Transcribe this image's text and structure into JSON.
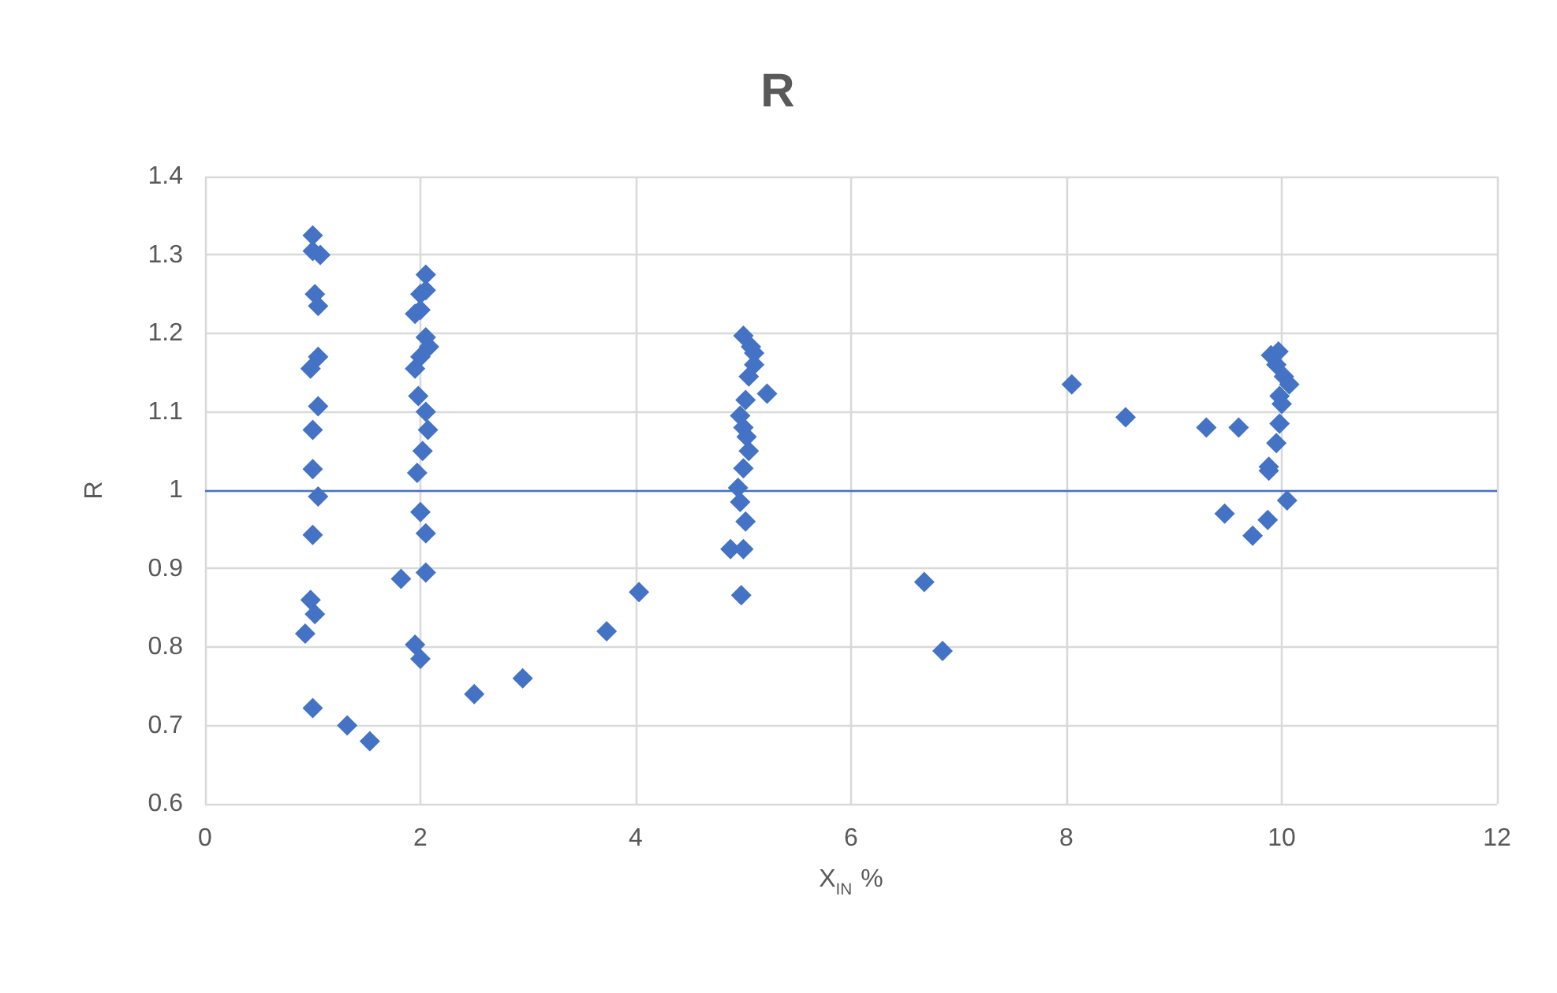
{
  "chart_data": {
    "type": "scatter",
    "title": "R",
    "xlabel": "X$_{IN}$ %",
    "ylabel": "R",
    "xlim": [
      0,
      12
    ],
    "xticks": [
      0,
      2,
      4,
      6,
      8,
      10,
      12
    ],
    "ylim": [
      0.6,
      1.4
    ],
    "yticks": [
      0.6,
      0.7,
      0.8,
      0.9,
      1,
      1.1,
      1.2,
      1.3,
      1.4
    ],
    "grid": true,
    "marker": "diamond",
    "series": [
      {
        "color": "#4472c4",
        "x": [
          1.0,
          1.0,
          1.07,
          1.02,
          1.05,
          1.05,
          0.98,
          1.05,
          1.0,
          1.0,
          1.05,
          1.0,
          0.98,
          1.02,
          0.93,
          1.0,
          1.32,
          1.53,
          2.05,
          2.05,
          2.0,
          1.95,
          2.0,
          2.05,
          2.08,
          2.0,
          1.95,
          1.98,
          2.05,
          2.07,
          2.02,
          1.97,
          2.0,
          2.05,
          2.05,
          1.82,
          1.95,
          2.0,
          2.5,
          2.95,
          3.73,
          4.03,
          5.0,
          5.07,
          5.1,
          5.1,
          5.05,
          5.22,
          5.02,
          4.97,
          5.0,
          5.03,
          5.05,
          5.0,
          4.95,
          4.97,
          5.02,
          4.88,
          5.0,
          4.98,
          6.68,
          6.85,
          8.05,
          8.55,
          9.3,
          9.6,
          9.9,
          9.97,
          9.95,
          10.02,
          10.07,
          9.98,
          10.0,
          9.98,
          9.95,
          9.88,
          9.88,
          10.05,
          9.47,
          9.87,
          9.73
        ],
        "values": [
          1.325,
          1.305,
          1.3,
          1.25,
          1.235,
          1.17,
          1.155,
          1.107,
          1.077,
          1.027,
          0.992,
          0.943,
          0.86,
          0.842,
          0.817,
          0.722,
          0.7,
          0.68,
          1.275,
          1.255,
          1.25,
          1.225,
          1.23,
          1.195,
          1.183,
          1.17,
          1.155,
          1.12,
          1.1,
          1.077,
          1.05,
          1.022,
          0.972,
          0.945,
          0.895,
          0.887,
          0.803,
          0.785,
          0.74,
          0.76,
          0.82,
          0.87,
          1.197,
          1.183,
          1.175,
          1.16,
          1.145,
          1.123,
          1.115,
          1.095,
          1.08,
          1.068,
          1.05,
          1.028,
          1.003,
          0.985,
          0.96,
          0.925,
          0.925,
          0.866,
          0.883,
          0.795,
          1.135,
          1.093,
          1.08,
          1.08,
          1.172,
          1.177,
          1.16,
          1.145,
          1.135,
          1.12,
          1.11,
          1.085,
          1.06,
          1.03,
          1.025,
          0.987,
          0.97,
          0.962,
          0.942
        ]
      }
    ],
    "ref_lines": [
      {
        "axis": "y",
        "value": 1,
        "color": "#4472c4",
        "line_style": "solid"
      }
    ]
  }
}
